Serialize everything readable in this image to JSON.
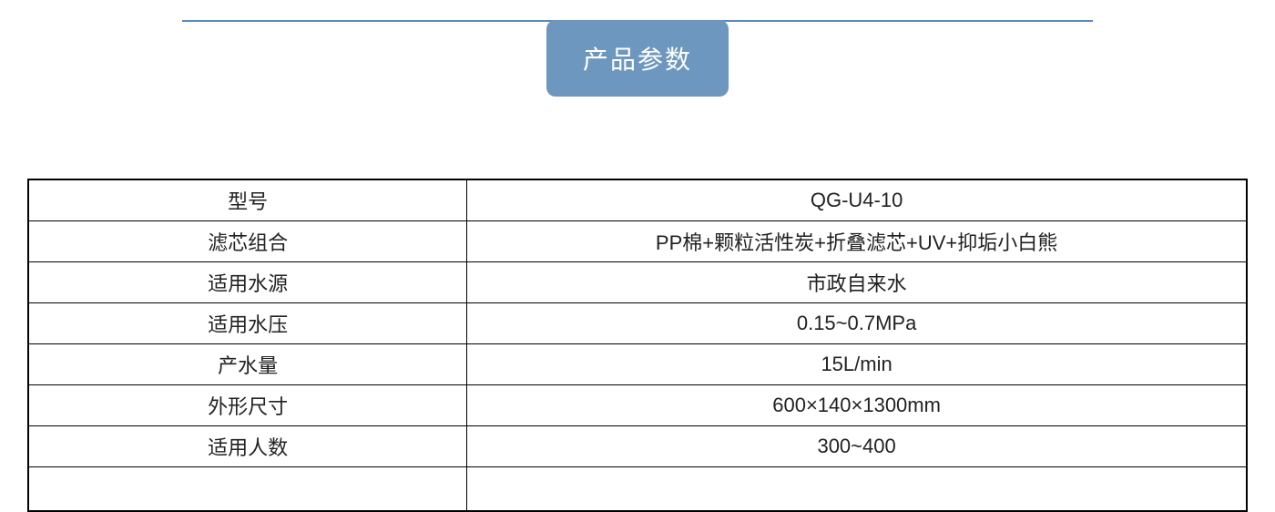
{
  "header": {
    "title": "产品参数",
    "badge_bg_color": "#6d97bf",
    "badge_text_color": "#ffffff",
    "line_color": "#5b8bc0",
    "title_fontsize": 28
  },
  "table": {
    "border_color": "#000000",
    "text_color": "#222222",
    "cell_fontsize": 22,
    "label_col_width_pct": 36,
    "value_col_width_pct": 64,
    "rows": [
      {
        "label": "型号",
        "value": "QG-U4-10"
      },
      {
        "label": "滤芯组合",
        "value": "PP棉+颗粒活性炭+折叠滤芯+UV+抑垢小白熊"
      },
      {
        "label": "适用水源",
        "value": "市政自来水"
      },
      {
        "label": "适用水压",
        "value": "0.15~0.7MPa"
      },
      {
        "label": "产水量",
        "value": "15L/min"
      },
      {
        "label": "外形尺寸",
        "value": "600×140×1300mm"
      },
      {
        "label": "适用人数",
        "value": "300~400"
      }
    ],
    "has_empty_trailing_row": true
  }
}
